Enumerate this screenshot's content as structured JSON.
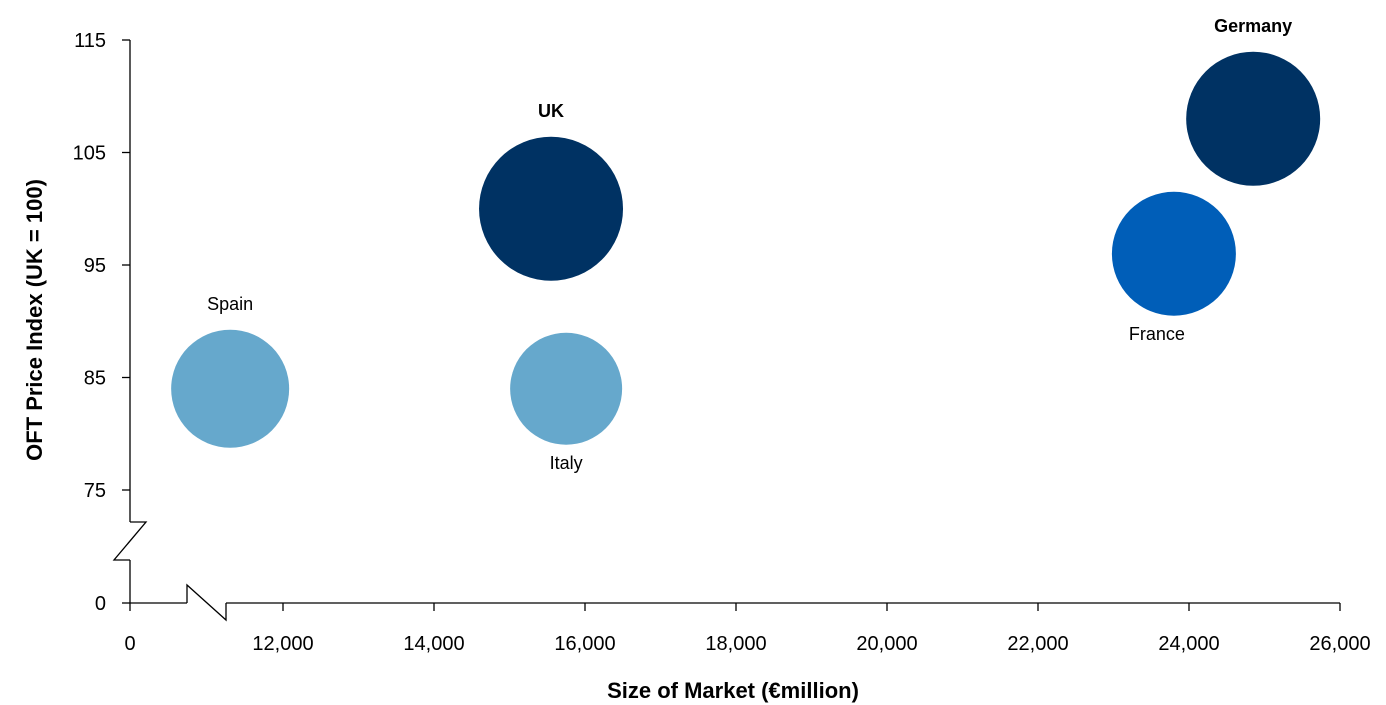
{
  "chart_data": {
    "type": "scatter",
    "variant": "bubble",
    "xlabel": "Size of Market (€million)",
    "ylabel": "OFT Price Index (UK = 100)",
    "x_axis_break": true,
    "y_axis_break": true,
    "xlim": [
      10000,
      26000
    ],
    "ylim": [
      70,
      115
    ],
    "x_ticks": [
      {
        "value": 0,
        "label": "0"
      },
      {
        "value": 12000,
        "label": "12,000"
      },
      {
        "value": 14000,
        "label": "14,000"
      },
      {
        "value": 16000,
        "label": "16,000"
      },
      {
        "value": 18000,
        "label": "18,000"
      },
      {
        "value": 20000,
        "label": "20,000"
      },
      {
        "value": 22000,
        "label": "22,000"
      },
      {
        "value": 24000,
        "label": "24,000"
      },
      {
        "value": 26000,
        "label": "26,000"
      }
    ],
    "y_ticks": [
      {
        "value": 0,
        "label": "0"
      },
      {
        "value": 75,
        "label": "75"
      },
      {
        "value": 85,
        "label": "85"
      },
      {
        "value": 95,
        "label": "95"
      },
      {
        "value": 105,
        "label": "105"
      },
      {
        "value": 115,
        "label": "115"
      }
    ],
    "grid": false,
    "legend": "none",
    "points": [
      {
        "label": "Spain",
        "x": 11300,
        "y": 84,
        "size": 59,
        "color": "#66a8cc",
        "label_position": "top",
        "bold": false
      },
      {
        "label": "UK",
        "x": 15550,
        "y": 100,
        "size": 72,
        "color": "#003263",
        "label_position": "top",
        "bold": true
      },
      {
        "label": "Italy",
        "x": 15750,
        "y": 84,
        "size": 56,
        "color": "#66a8cc",
        "label_position": "bottom",
        "bold": false
      },
      {
        "label": "France",
        "x": 23800,
        "y": 96,
        "size": 62,
        "color": "#005eb8",
        "label_position": "bottom",
        "bold": false
      },
      {
        "label": "Germany",
        "x": 24850,
        "y": 108,
        "size": 67,
        "color": "#003263",
        "label_position": "top",
        "bold": true
      }
    ]
  }
}
